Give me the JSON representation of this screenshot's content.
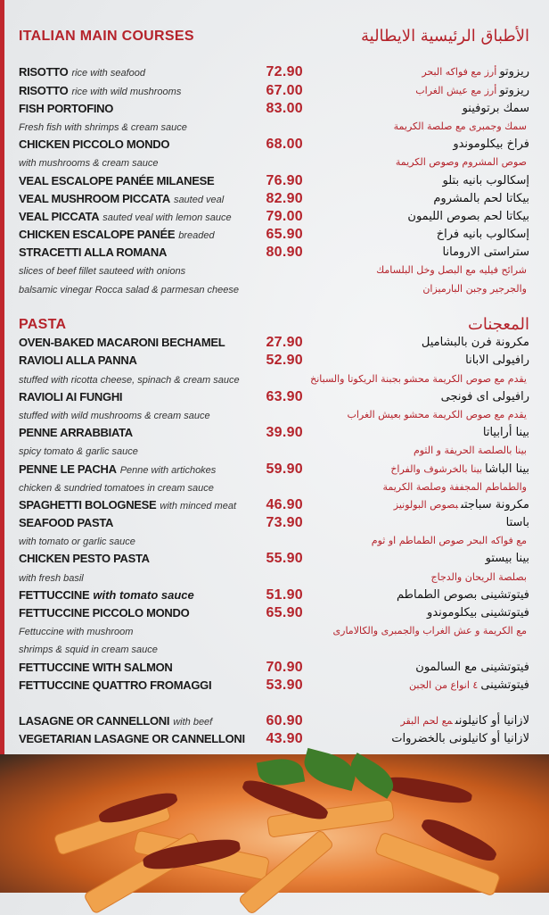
{
  "colors": {
    "accent": "#b5232b",
    "background": "#eceef0"
  },
  "sections": [
    {
      "title": "ITALIAN MAIN COURSES",
      "title_ar": "الأطباق الرئيسية الايطالية",
      "lines": [
        {
          "name": "RISOTTO",
          "desc": "rice with seafood",
          "price": "72.90",
          "ar_name": "ريزوتو",
          "ar_desc": "أرز مع فواكه البحر"
        },
        {
          "name": "RISOTTO",
          "desc": "rice with wild mushrooms",
          "price": "67.00",
          "ar_name": "ريزوتو",
          "ar_desc": "أرز مع عيش الغراب"
        },
        {
          "name": "FISH PORTOFINO",
          "price": "83.00",
          "ar_name": "سمك برتوفينو"
        },
        {
          "desc": "Fresh fish with shrimps & cream sauce",
          "ar_desc": "سمك وجمبرى مع صلصة الكريمة"
        },
        {
          "name": "CHICKEN PICCOLO MONDO",
          "price": "68.00",
          "ar_name": "فراخ بيكلوموندو"
        },
        {
          "desc": "with mushrooms & cream sauce",
          "ar_desc": "صوص المشروم وصوص الكريمة"
        },
        {
          "name": "VEAL ESCALOPE PANÉE MILANESE",
          "price": "76.90",
          "ar_name": "إسكالوب بانيه بتلو"
        },
        {
          "name": "VEAL MUSHROOM PICCATA",
          "desc": "sauted veal",
          "price": "82.90",
          "ar_name": "بيكاتا لحم بالمشروم"
        },
        {
          "name": "VEAL PICCATA",
          "desc": "sauted veal with lemon sauce",
          "price": "79.00",
          "ar_name": "بيكاتا لحم بصوص الليمون"
        },
        {
          "name": "CHICKEN ESCALOPE PANÉE",
          "desc": "breaded",
          "price": "65.90",
          "ar_name": "إسكالوب بانيه فراخ"
        },
        {
          "name": "STRACETTI ALLA ROMANA",
          "price": "80.90",
          "ar_name": "ستراستى الارومانا"
        },
        {
          "desc": "slices of beef fillet sauteed with onions",
          "ar_desc": "شرائح فيليه مع البصل وخل البلسامك"
        },
        {
          "desc": "balsamic vinegar Rocca salad & parmesan cheese",
          "ar_desc": "والجرجير وجبن البارميزان"
        }
      ]
    },
    {
      "title": "PASTA",
      "title_ar": "المعجنات",
      "lines": [
        {
          "name": "OVEN-BAKED MACARONI BECHAMEL",
          "price": "27.90",
          "ar_name": "مكرونة فرن بالبشاميل"
        },
        {
          "name": "RAVIOLI ALLA PANNA",
          "price": "52.90",
          "ar_name": "رافيولى الابانا"
        },
        {
          "desc": "stuffed with ricotta cheese, spinach & cream sauce",
          "ar_desc": "يقدم مع صوص الكريمة محشو بجبنة الريكوتا والسبانخ"
        },
        {
          "name": "RAVIOLI AI FUNGHI",
          "price": "63.90",
          "ar_name": "رافيولى اى فونجى"
        },
        {
          "desc": "stuffed with wild mushrooms & cream sauce",
          "ar_desc": "يقدم مع صوص الكريمة محشو بعيش الغراب"
        },
        {
          "name": "PENNE ARRABBIATA",
          "price": "39.90",
          "ar_name": "بينا أرابياتا"
        },
        {
          "desc": "spicy tomato & garlic sauce",
          "ar_desc": "بينا بالصلصة الحريفة و الثوم"
        },
        {
          "name": "PENNE LE PACHA",
          "desc": "Penne with artichokes",
          "price": "59.90",
          "ar_name": "بينا الباشا",
          "ar_desc": "بينا بالخرشوف والفراخ"
        },
        {
          "desc": "chicken & sundried tomatoes in cream sauce",
          "ar_desc": "والطماطم المجففة وصلصة الكريمة"
        },
        {
          "name": "SPAGHETTI BOLOGNESE",
          "desc": "with minced meat",
          "price": "46.90",
          "ar_name": "مكرونة سباجتى",
          "ar_desc": "بصوص البولونيز"
        },
        {
          "name": "SEAFOOD PASTA",
          "price": "73.90",
          "ar_name": "باستا"
        },
        {
          "desc": "with tomato or garlic sauce",
          "ar_desc": "مع فواكه البحر صوص الطماطم او ثوم"
        },
        {
          "name": "CHICKEN PESTO PASTA",
          "price": "55.90",
          "ar_name": "بينا بيستو"
        },
        {
          "desc": "with fresh basil",
          "ar_desc": "بصلصة الريحان والدجاج"
        },
        {
          "name": "FETTUCCINE",
          "desc": "with tomato sauce",
          "desc_style": "bolditalic",
          "price": "51.90",
          "ar_name": "فيتوتشينى بصوص الطماطم"
        },
        {
          "name": "FETTUCCINE PICCOLO MONDO",
          "price": "65.90",
          "ar_name": "فيتوتشينى بيكلوموندو"
        },
        {
          "desc": "Fettuccine with mushroom",
          "ar_desc": "مع الكريمة و عش الغراب والجمبرى والكالامارى"
        },
        {
          "desc": " shrimps & squid in cream sauce"
        },
        {
          "name": "FETTUCCINE WITH SALMON",
          "price": "70.90",
          "ar_name": "فيتوتشينى مع السالمون"
        },
        {
          "name": "FETTUCCINE QUATTRO FROMAGGI",
          "price": "53.90",
          "ar_name": "فيتوتشينى",
          "ar_desc": "٤ انواع من الجبن"
        },
        {
          "blank": true
        },
        {
          "name": "LASAGNE OR CANNELLONI",
          "desc": "with beef",
          "price": "60.90",
          "ar_name": "لازانيا أو كانيلونى",
          "ar_desc": "مع لحم البقر"
        },
        {
          "name": "VEGETARIAN LASAGNE OR CANNELLONI",
          "price": "43.90",
          "ar_name": "لازانيا أو كانيلونى بالخضروات"
        }
      ]
    }
  ],
  "photo": {
    "icon": "penne-pasta-dish-photo"
  }
}
